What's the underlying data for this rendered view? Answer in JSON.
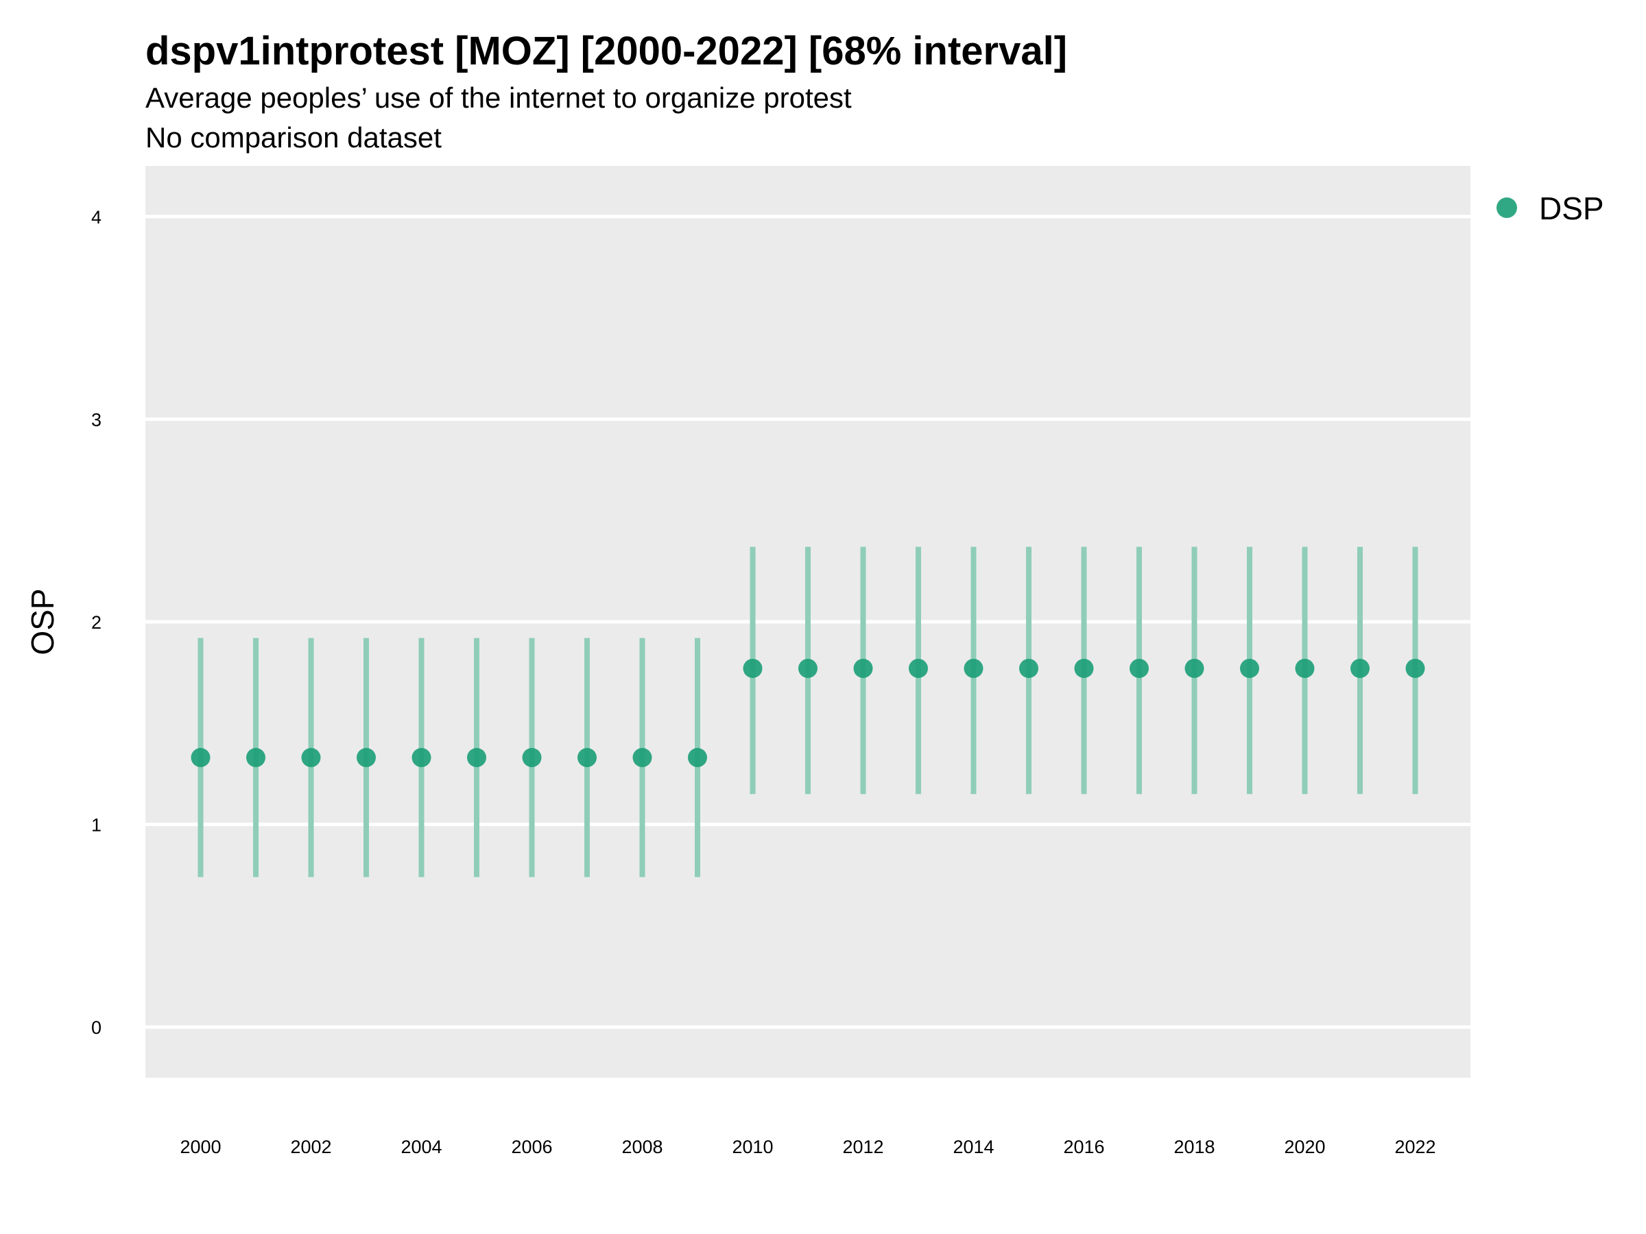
{
  "chart_data": {
    "type": "scatter",
    "title": "dspv1intprotest [MOZ] [2000-2022] [68% interval]",
    "subtitle": "Average peoples’ use of the internet to organize protest",
    "caption": "No comparison dataset",
    "xlabel": "",
    "ylabel": "OSP",
    "xlim": [
      1999,
      2023
    ],
    "ylim": [
      -0.25,
      4.25
    ],
    "x_ticks": [
      "2000",
      "2002",
      "2004",
      "2006",
      "2008",
      "2010",
      "2012",
      "2014",
      "2016",
      "2018",
      "2020",
      "2022"
    ],
    "y_ticks": [
      "0",
      "1",
      "2",
      "3",
      "4"
    ],
    "grid": true,
    "legend_position": "top-right",
    "series": [
      {
        "name": "DSP",
        "color": "#1b9e77",
        "x": [
          2000,
          2001,
          2002,
          2003,
          2004,
          2005,
          2006,
          2007,
          2008,
          2009,
          2010,
          2011,
          2012,
          2013,
          2014,
          2015,
          2016,
          2017,
          2018,
          2019,
          2020,
          2021,
          2022
        ],
        "y": [
          1.33,
          1.33,
          1.33,
          1.33,
          1.33,
          1.33,
          1.33,
          1.33,
          1.33,
          1.33,
          1.77,
          1.77,
          1.77,
          1.77,
          1.77,
          1.77,
          1.77,
          1.77,
          1.77,
          1.77,
          1.77,
          1.77,
          1.77
        ],
        "lower": [
          0.74,
          0.74,
          0.74,
          0.74,
          0.74,
          0.74,
          0.74,
          0.74,
          0.74,
          0.74,
          1.15,
          1.15,
          1.15,
          1.15,
          1.15,
          1.15,
          1.15,
          1.15,
          1.15,
          1.15,
          1.15,
          1.15,
          1.15
        ],
        "upper": [
          1.92,
          1.92,
          1.92,
          1.92,
          1.92,
          1.92,
          1.92,
          1.92,
          1.92,
          1.92,
          2.37,
          2.37,
          2.37,
          2.37,
          2.37,
          2.37,
          2.37,
          2.37,
          2.37,
          2.37,
          2.37,
          2.37,
          2.37
        ]
      }
    ]
  },
  "colors": {
    "panel_background": "#ebebeb",
    "gridline": "#ffffff",
    "point": "#1b9e77",
    "interval": "#8fcdb8"
  }
}
